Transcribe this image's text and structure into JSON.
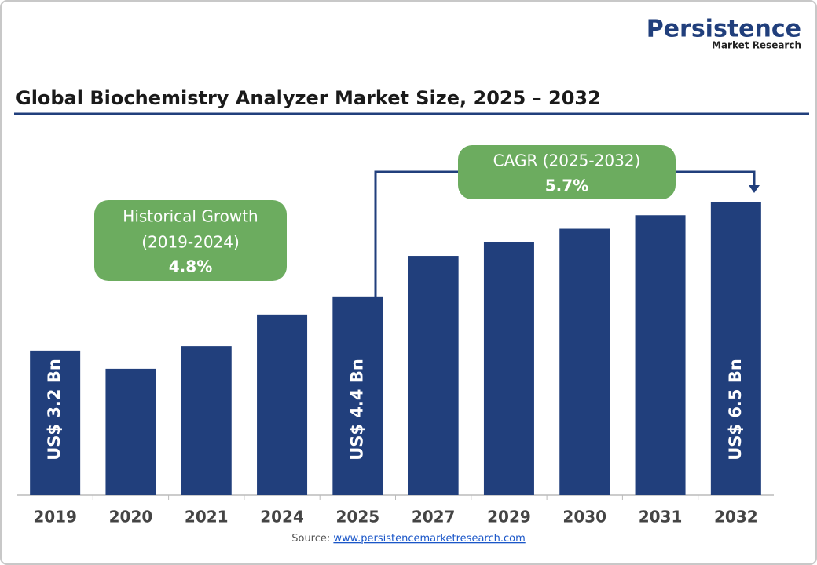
{
  "logo": {
    "name": "Persistence",
    "tagline": "Market Research"
  },
  "chart_data": {
    "type": "bar",
    "title": "Global Biochemistry Analyzer Market Size, 2025 – 2032",
    "categories": [
      "2019",
      "2020",
      "2021",
      "2024",
      "2025",
      "2027",
      "2029",
      "2030",
      "2031",
      "2032"
    ],
    "values": [
      3.2,
      2.8,
      3.3,
      4.0,
      4.4,
      5.3,
      5.6,
      5.9,
      6.2,
      6.5
    ],
    "value_labels": [
      "US$ 3.2 Bn",
      null,
      null,
      null,
      "US$ 4.4 Bn",
      null,
      null,
      null,
      null,
      "US$ 6.5 Bn"
    ],
    "color": "#213f7c",
    "annotations": [
      {
        "lines": [
          "Historical Growth",
          "(2019-2024)",
          "4.8%"
        ],
        "color": "#6cac5f"
      },
      {
        "lines": [
          "CAGR (2025-2032)",
          "5.7%"
        ],
        "color": "#6cac5f"
      }
    ],
    "source": {
      "label": "Source:",
      "link": "www.persistencemarketresearch.com"
    }
  }
}
